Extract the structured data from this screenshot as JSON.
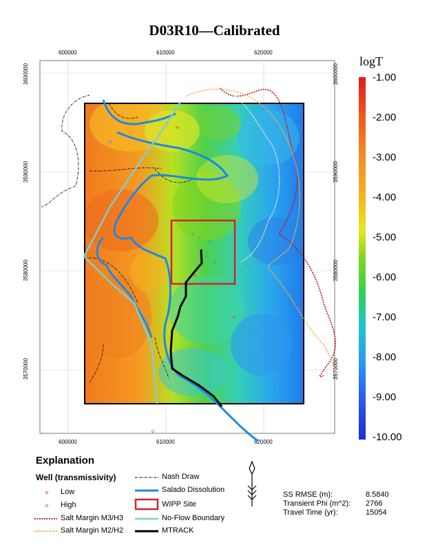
{
  "title": "D03R10—Calibrated",
  "x_ticks": [
    "600000",
    "610000",
    "620000"
  ],
  "y_ticks": [
    "3600000",
    "3590000",
    "3580000",
    "3570000"
  ],
  "colorbar": {
    "title": "logT",
    "labels": [
      "-1.00",
      "-2.00",
      "-3.00",
      "-4.00",
      "-5.00",
      "-6.00",
      "-7.00",
      "-8.00",
      "-9.00",
      "-10.00"
    ],
    "colors": [
      "#e41a1c",
      "#f05a1e",
      "#f58c24",
      "#f5b31f",
      "#e6e623",
      "#7fd61e",
      "#2ecf5b",
      "#22c6c6",
      "#2a9df2",
      "#2a5ff0",
      "#1f2bd6"
    ]
  },
  "explanation": {
    "heading": "Explanation",
    "subheading": "Well (transmissivity)",
    "items": {
      "low": "Low",
      "high": "High",
      "salt_m3": "Salt Margin M3/H3",
      "salt_m2": "Salt Margin M2/H2",
      "nash_draw": "Nash Draw",
      "salado": "Salado Dissolution",
      "wipp": "WIPP Site",
      "no_flow": "No-Flow Boundary",
      "mtrack": "MTRACK"
    }
  },
  "stats": {
    "rmse_label": "SS RMSE (m):",
    "rmse_value": "8.5840",
    "phi_label": "Transient Phi (m^2):",
    "phi_value": "2766",
    "travel_label": "Travel Time (yr):",
    "travel_value": "15054"
  }
}
